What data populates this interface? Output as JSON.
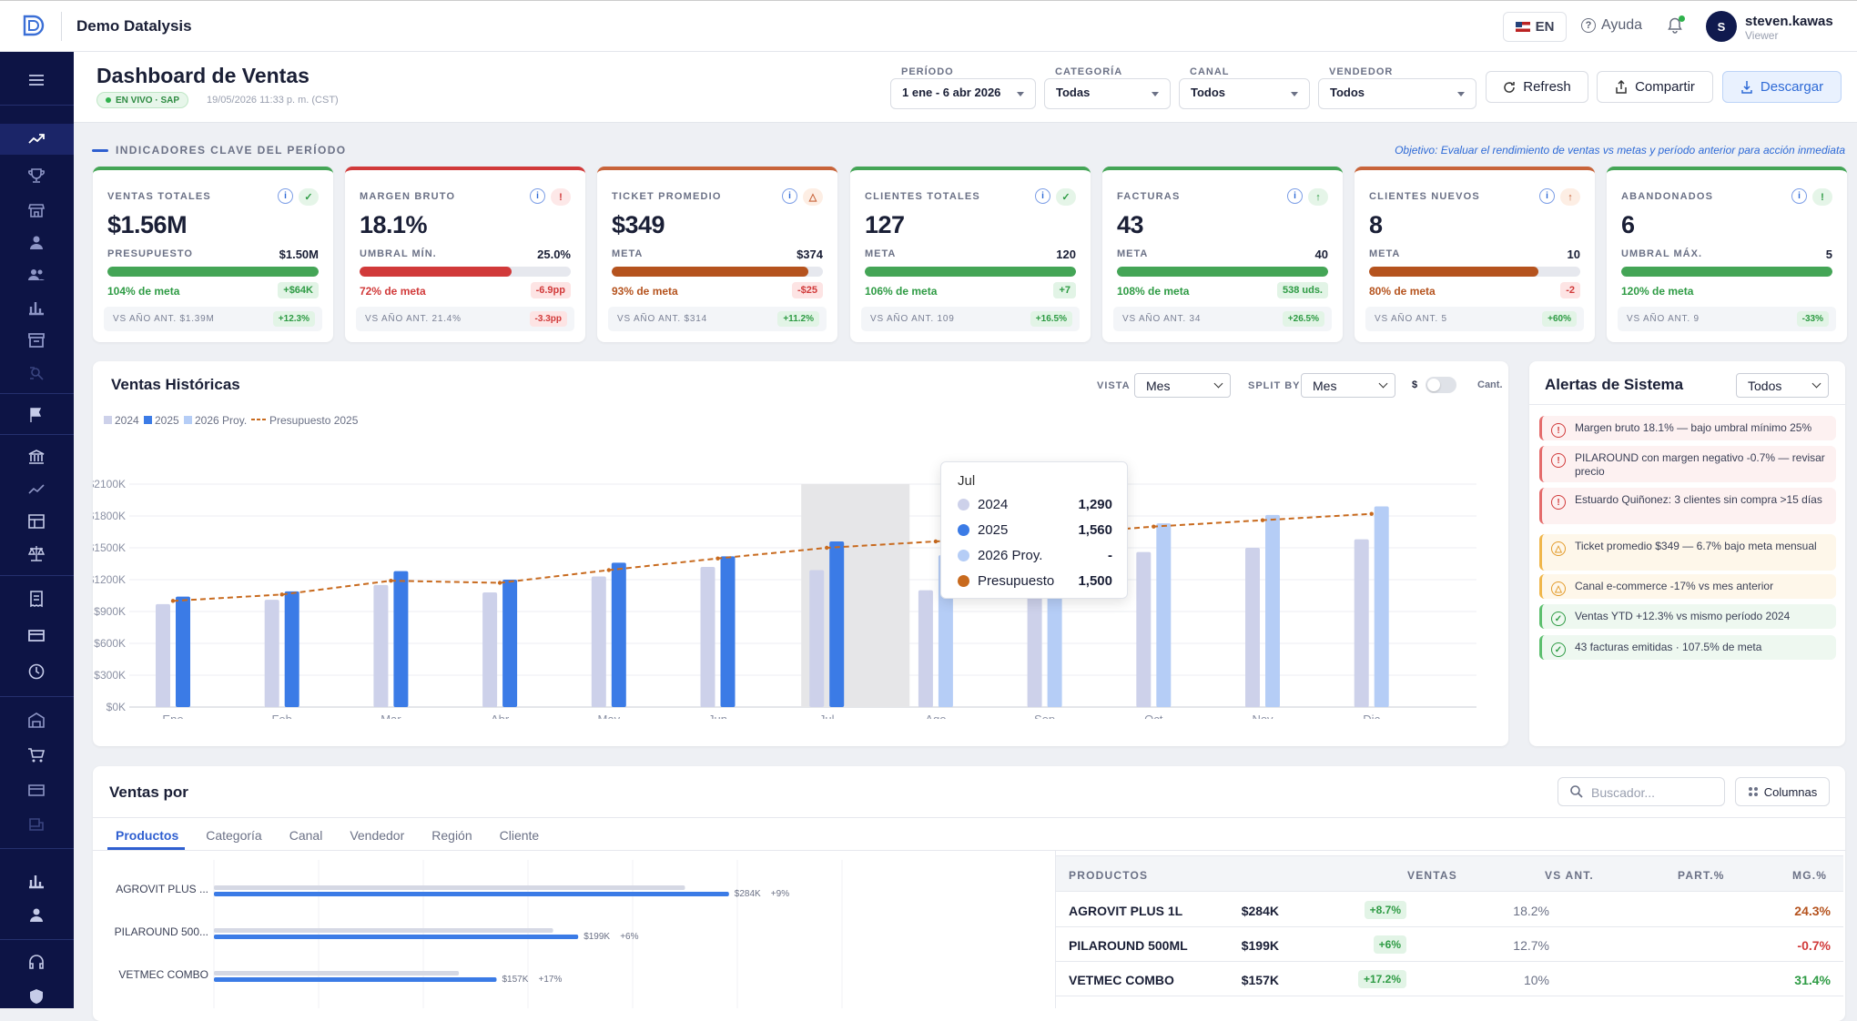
{
  "app": {
    "name": "Demo Datalysis",
    "lang": "EN",
    "help": "Ayuda",
    "user": {
      "name": "steven.kawas",
      "role": "Viewer",
      "initial": "S"
    }
  },
  "header": {
    "title": "Dashboard de Ventas",
    "live_badge": "EN VIVO · SAP",
    "timestamp": "19/05/2026 11:33 p. m. (CST)",
    "filters": [
      {
        "label": "PERÍODO",
        "value": "1 ene - 6 abr 2026"
      },
      {
        "label": "CATEGORÍA",
        "value": "Todas"
      },
      {
        "label": "CANAL",
        "value": "Todos"
      },
      {
        "label": "VENDEDOR",
        "value": "Todos"
      }
    ],
    "buttons": {
      "refresh": "Refresh",
      "share": "Compartir",
      "download": "Descargar"
    }
  },
  "kpi_section": {
    "title": "INDICADORES CLAVE DEL PERÍODO",
    "objective": "Objetivo: Evaluar el rendimiento de ventas vs metas y período anterior para acción inmediata"
  },
  "kpis": [
    {
      "label": "VENTAS TOTALES",
      "value": "$1.56M",
      "status_icon": "✓",
      "status": "g",
      "sub_label": "PRESUPUESTO",
      "sub_value": "$1.50M",
      "progress": 1.0,
      "bar_color": "#44a556",
      "pct": "104% de meta",
      "pct_color": "g",
      "delta": "+$64K",
      "delta_color": "g",
      "prev": "VS AÑO ANT. $1.39M",
      "prev_delta": "+12.3%",
      "prev_color": "g",
      "top_color": "#44a556"
    },
    {
      "label": "MARGEN BRUTO",
      "value": "18.1%",
      "status_icon": "!",
      "status": "r",
      "sub_label": "UMBRAL MÍN.",
      "sub_value": "25.0%",
      "progress": 0.72,
      "bar_color": "#d13a3a",
      "pct": "72% de meta",
      "pct_color": "r",
      "delta": "-6.9pp",
      "delta_color": "r",
      "prev": "VS AÑO ANT. 21.4%",
      "prev_delta": "-3.3pp",
      "prev_color": "r",
      "top_color": "#d13a3a"
    },
    {
      "label": "TICKET PROMEDIO",
      "value": "$349",
      "status_icon": "△",
      "status": "o",
      "sub_label": "META",
      "sub_value": "$374",
      "progress": 0.93,
      "bar_color": "#b5531e",
      "pct": "93% de meta",
      "pct_color": "o",
      "delta": "-$25",
      "delta_color": "r",
      "prev": "VS AÑO ANT. $314",
      "prev_delta": "+11.2%",
      "prev_color": "g",
      "top_color": "#c8643a"
    },
    {
      "label": "CLIENTES TOTALES",
      "value": "127",
      "status_icon": "✓",
      "status": "g",
      "sub_label": "META",
      "sub_value": "120",
      "progress": 1.0,
      "bar_color": "#44a556",
      "pct": "106% de meta",
      "pct_color": "g",
      "delta": "+7",
      "delta_color": "g",
      "prev": "VS AÑO ANT. 109",
      "prev_delta": "+16.5%",
      "prev_color": "g",
      "top_color": "#44a556"
    },
    {
      "label": "FACTURAS",
      "value": "43",
      "status_icon": "↑",
      "status": "g",
      "sub_label": "META",
      "sub_value": "40",
      "progress": 1.0,
      "bar_color": "#44a556",
      "pct": "108% de meta",
      "pct_color": "g",
      "delta": "538 uds.",
      "delta_color": "g",
      "prev": "VS AÑO ANT. 34",
      "prev_delta": "+26.5%",
      "prev_color": "g",
      "top_color": "#44a556"
    },
    {
      "label": "CLIENTES NUEVOS",
      "value": "8",
      "status_icon": "↑",
      "status": "o",
      "sub_label": "META",
      "sub_value": "10",
      "progress": 0.8,
      "bar_color": "#b5531e",
      "pct": "80% de meta",
      "pct_color": "o",
      "delta": "-2",
      "delta_color": "r",
      "prev": "VS AÑO ANT. 5",
      "prev_delta": "+60%",
      "prev_color": "g",
      "top_color": "#c8643a"
    },
    {
      "label": "ABANDONADOS",
      "value": "6",
      "status_icon": "!",
      "status": "g",
      "sub_label": "UMBRAL MÁX.",
      "sub_value": "5",
      "progress": 1.0,
      "bar_color": "#44a556",
      "pct": "120% de meta",
      "pct_color": "g",
      "delta": "",
      "delta_color": "g",
      "prev": "VS AÑO ANT. 9",
      "prev_delta": "-33%",
      "prev_color": "g",
      "top_color": "#44a556"
    }
  ],
  "history": {
    "title": "Ventas Históricas",
    "vista_label": "VISTA",
    "vista_value": "Mes",
    "split_label": "SPLIT BY",
    "split_value": "Mes",
    "toggle_left": "$",
    "toggle_right": "Cant.",
    "tooltip": {
      "title": "Jul",
      "rows": [
        {
          "name": "2024",
          "value": "1,290",
          "color": "#cdd1ea"
        },
        {
          "name": "2025",
          "value": "1,560",
          "color": "#3b7be6"
        },
        {
          "name": "2026 Proy.",
          "value": "-",
          "color": "#b5cdf6"
        },
        {
          "name": "Presupuesto",
          "value": "1,500",
          "color": "#c86a1e"
        }
      ]
    }
  },
  "chart_data": {
    "type": "bar",
    "categories": [
      "Ene",
      "Feb",
      "Mar",
      "Abr",
      "May",
      "Jun",
      "Jul",
      "Ago",
      "Sep",
      "Oct",
      "Nov",
      "Dic"
    ],
    "series": [
      {
        "name": "2024",
        "color": "#cdd1ea",
        "values": [
          970,
          1010,
          1150,
          1080,
          1230,
          1320,
          1290,
          1100,
          1200,
          1460,
          1500,
          1580
        ]
      },
      {
        "name": "2025",
        "color": "#3b7be6",
        "values": [
          1040,
          1090,
          1280,
          1200,
          1360,
          1420,
          1560,
          null,
          null,
          null,
          null,
          null
        ]
      },
      {
        "name": "2026 Proy.",
        "color": "#b5cdf6",
        "values": [
          null,
          null,
          null,
          null,
          null,
          null,
          null,
          1430,
          1560,
          1730,
          1810,
          1890
        ]
      },
      {
        "name": "Presupuesto 2025",
        "color": "#c86a1e",
        "type": "line",
        "values": [
          1000,
          1060,
          1190,
          1170,
          1290,
          1400,
          1500,
          1560,
          1620,
          1700,
          1760,
          1820
        ]
      }
    ],
    "yticks": [
      "$0K",
      "$300K",
      "$600K",
      "$900K",
      "$1200K",
      "$1500K",
      "$1800K",
      "$2100K"
    ],
    "ylim": [
      0,
      2100
    ],
    "highlight": "Jul",
    "legend": "top-left"
  },
  "alerts": {
    "title": "Alertas de Sistema",
    "filter": "Todos",
    "items": [
      {
        "type": "r",
        "icon": "!",
        "text": "Margen bruto 18.1% — bajo umbral mínimo 25%"
      },
      {
        "type": "r",
        "icon": "!",
        "text": "PILAROUND con margen negativo -0.7% — revisar precio"
      },
      {
        "type": "r",
        "icon": "!",
        "text": "Estuardo Quiñonez: 3 clientes sin compra >15 días"
      },
      {
        "type": "o",
        "icon": "△",
        "text": "Ticket promedio $349 — 6.7% bajo meta mensual"
      },
      {
        "type": "o",
        "icon": "△",
        "text": "Canal e-commerce -17% vs mes anterior"
      },
      {
        "type": "g",
        "icon": "✓",
        "text": "Ventas YTD +12.3% vs mismo período 2024"
      },
      {
        "type": "g",
        "icon": "✓",
        "text": "43 facturas emitidas · 107.5% de meta"
      }
    ]
  },
  "sales_by": {
    "title": "Ventas por",
    "search_placeholder": "Buscador...",
    "columns_btn": "Columnas",
    "tabs": [
      "Productos",
      "Categoría",
      "Canal",
      "Vendedor",
      "Región",
      "Cliente"
    ],
    "bars": [
      {
        "label": "AGROVIT PLUS ...",
        "prev": 0.75,
        "cur": 0.82,
        "value": "$284K",
        "delta": "+9%"
      },
      {
        "label": "PILAROUND 500...",
        "prev": 0.54,
        "cur": 0.58,
        "value": "$199K",
        "delta": "+6%"
      },
      {
        "label": "VETMEC COMBO",
        "prev": 0.39,
        "cur": 0.45,
        "value": "$157K",
        "delta": "+17%"
      }
    ],
    "table": {
      "headers": [
        "PRODUCTOS",
        "VENTAS",
        "VS ANT.",
        "PART.%",
        "MG.%"
      ],
      "rows": [
        {
          "name": "AGROVIT PLUS 1L",
          "sales": "$284K",
          "vs": "+8.7%",
          "part": "18.2%",
          "mg": "24.3%",
          "mg_color": "#b5531e"
        },
        {
          "name": "PILAROUND 500ML",
          "sales": "$199K",
          "vs": "+6%",
          "part": "12.7%",
          "mg": "-0.7%",
          "mg_color": "#d13a3a"
        },
        {
          "name": "VETMEC COMBO",
          "sales": "$157K",
          "vs": "+17.2%",
          "part": "10%",
          "mg": "31.4%",
          "mg_color": "#2e9b44"
        }
      ]
    }
  }
}
